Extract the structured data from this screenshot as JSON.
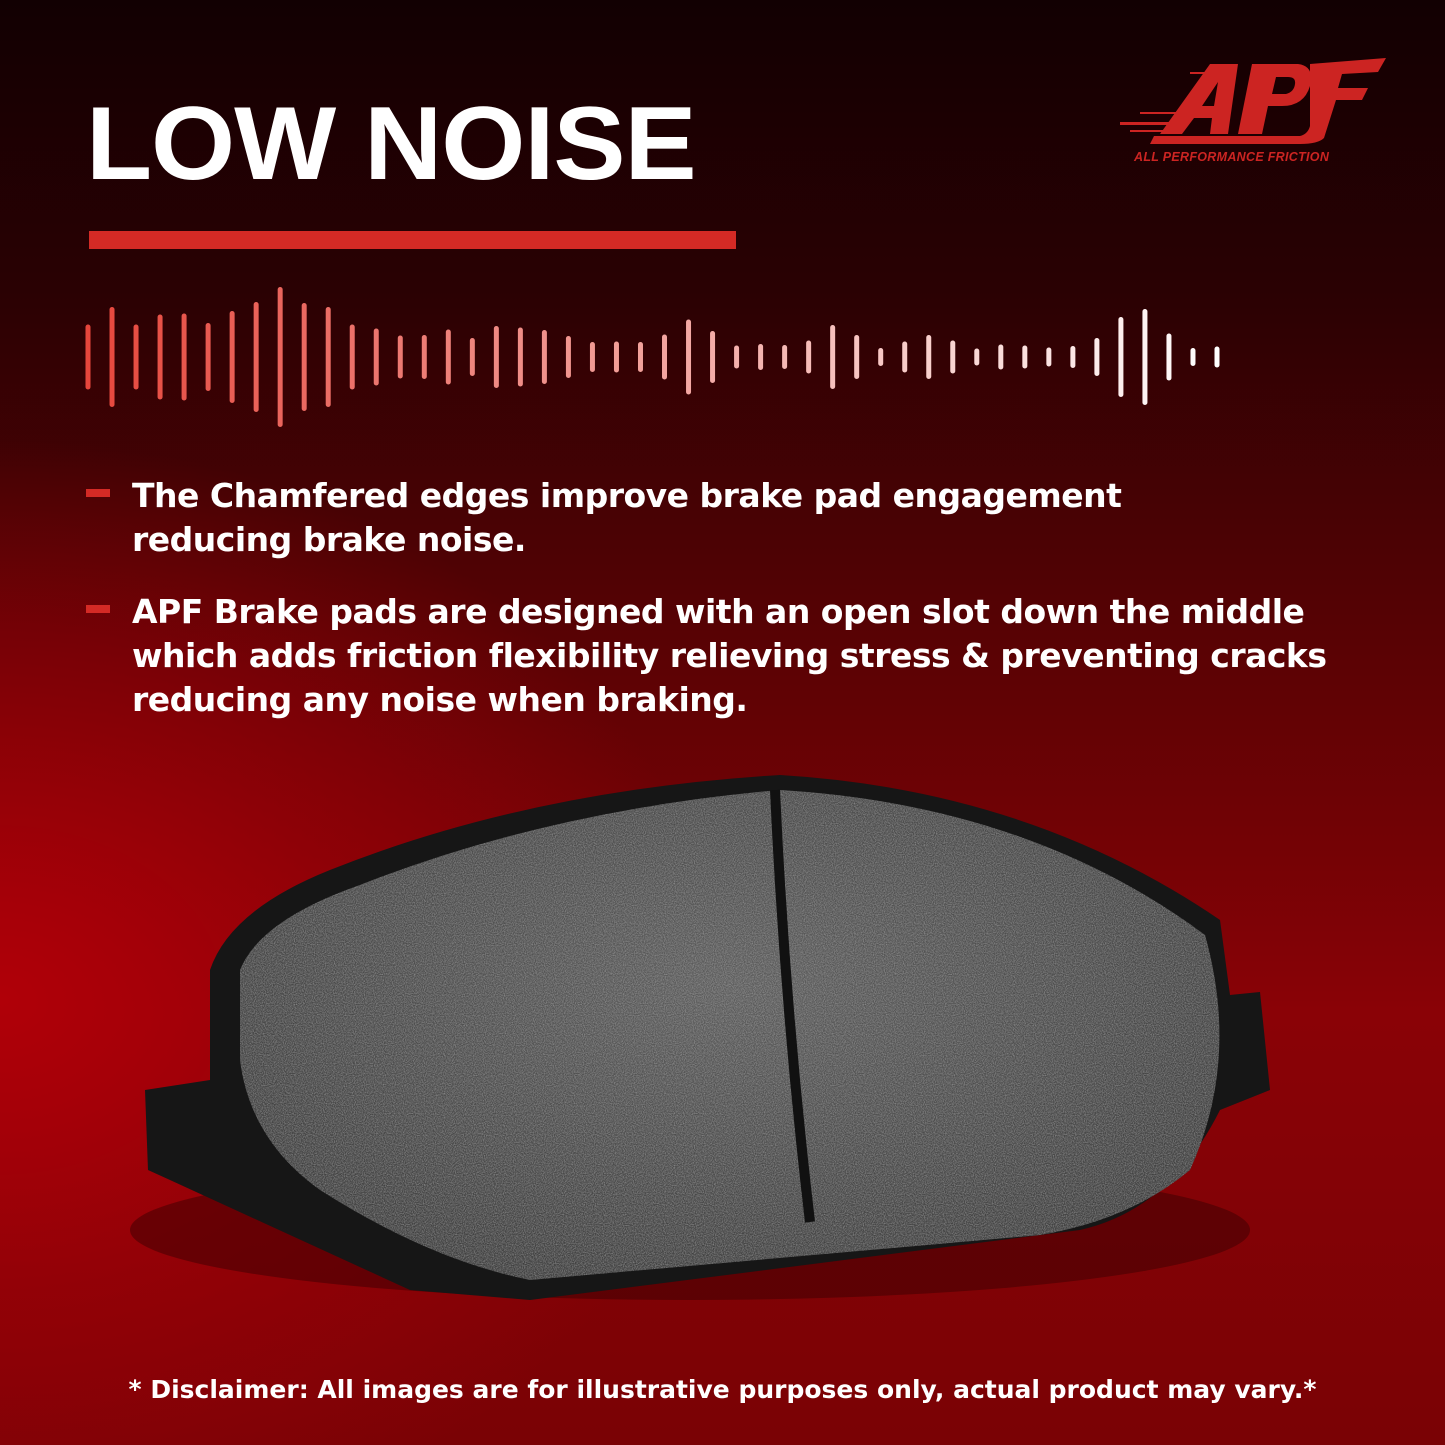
{
  "title": "LOW NOISE",
  "brand": {
    "logo_text": "APF",
    "tagline": "ALL PERFORMANCE FRICTION",
    "color": "#cc2422"
  },
  "accent_color": "#d42a25",
  "bullets": [
    {
      "text": "The Chamfered edges improve brake pad engagement reducing brake noise."
    },
    {
      "text": "APF Brake pads are designed with an open slot down the middle which adds friction flexibility relieving stress & preventing cracks reducing any noise when braking."
    }
  ],
  "disclaimer": "* Disclaimer: All images are for illustrative purposes only, actual product may vary.*"
}
